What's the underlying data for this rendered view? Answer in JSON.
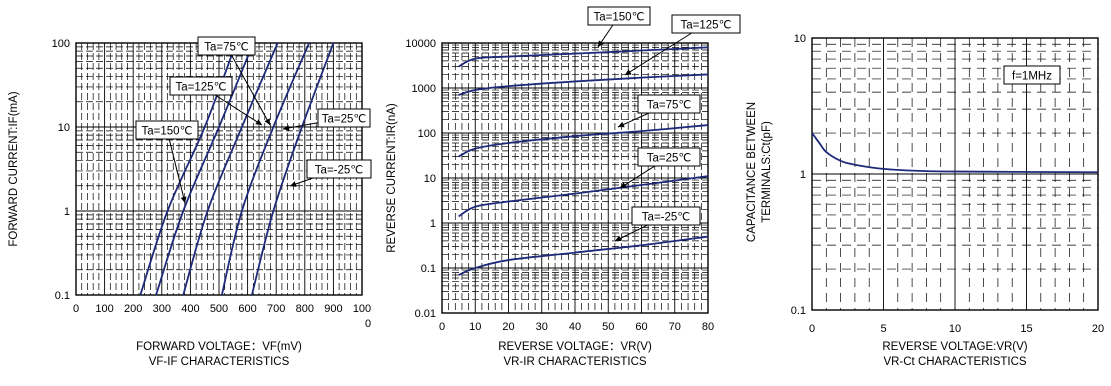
{
  "colors": {
    "curve": "#1f2a7a",
    "grid": "#000000",
    "background": "#ffffff"
  },
  "chart_data": [
    {
      "type": "line",
      "caption": "VF-IF CHARACTERISTICS",
      "xlabel": "FORWARD VOLTAGE：VF(mV)",
      "ylabel": "FORWARD CURRENT:IF(mA)",
      "xlim": [
        0,
        1000
      ],
      "ylim": [
        0.1,
        100
      ],
      "yscale": "log",
      "xticks": [
        "0",
        "100",
        "200",
        "300",
        "400",
        "500",
        "600",
        "700",
        "800",
        "900",
        "1000"
      ],
      "xtick_last_label": [
        "100",
        "0"
      ],
      "yticks": [
        "0.1",
        "1",
        "10",
        "100"
      ],
      "series": [
        {
          "name": "Ta=150℃",
          "x": [
            225,
            320,
            450,
            560
          ],
          "y": [
            0.1,
            1,
            10,
            100
          ]
        },
        {
          "name": "Ta=125℃",
          "x": [
            280,
            375,
            500,
            620
          ],
          "y": [
            0.1,
            1,
            10,
            100
          ]
        },
        {
          "name": "Ta=75℃",
          "x": [
            375,
            460,
            580,
            705
          ],
          "y": [
            0.1,
            1,
            10,
            100
          ]
        },
        {
          "name": "Ta=25℃",
          "x": [
            510,
            580,
            690,
            815
          ],
          "y": [
            0.1,
            1,
            10,
            100
          ]
        },
        {
          "name": "Ta=-25℃",
          "x": [
            615,
            690,
            790,
            900
          ],
          "y": [
            0.1,
            1,
            10,
            100
          ]
        }
      ],
      "annotations": [
        {
          "text": "Ta=75℃"
        },
        {
          "text": "Ta=125℃"
        },
        {
          "text": "Ta=150℃"
        },
        {
          "text": "Ta=25℃"
        },
        {
          "text": "Ta=-25℃"
        }
      ]
    },
    {
      "type": "line",
      "caption": "VR-IR CHARACTERISTICS",
      "xlabel": "REVERSE VOLTAGE：VR(V)",
      "ylabel": "REVERSE CURRENT:IR(nA)",
      "xlim": [
        0,
        80
      ],
      "ylim": [
        0.01,
        10000
      ],
      "yscale": "log",
      "xticks": [
        "0",
        "10",
        "20",
        "30",
        "40",
        "50",
        "60",
        "70",
        "80"
      ],
      "yticks": [
        "0.01",
        "0.1",
        "1",
        "10",
        "100",
        "1000",
        "10000"
      ],
      "series": [
        {
          "name": "Ta=150℃",
          "x": [
            5,
            10,
            20,
            40,
            60,
            80
          ],
          "y": [
            3000,
            4500,
            5000,
            5800,
            6800,
            8000
          ]
        },
        {
          "name": "Ta=125℃",
          "x": [
            5,
            10,
            20,
            40,
            60,
            80
          ],
          "y": [
            700,
            900,
            1100,
            1400,
            1700,
            2000
          ]
        },
        {
          "name": "Ta=75℃",
          "x": [
            5,
            10,
            20,
            40,
            60,
            80
          ],
          "y": [
            30,
            45,
            60,
            85,
            110,
            150
          ]
        },
        {
          "name": "Ta=25℃",
          "x": [
            5,
            10,
            20,
            40,
            60,
            80
          ],
          "y": [
            1.4,
            2.3,
            3,
            4.5,
            7,
            11
          ]
        },
        {
          "name": "Ta=-25℃",
          "x": [
            5,
            10,
            20,
            40,
            60,
            80
          ],
          "y": [
            0.07,
            0.1,
            0.15,
            0.22,
            0.32,
            0.5
          ]
        }
      ],
      "annotations": [
        {
          "text": "Ta=150℃"
        },
        {
          "text": "Ta=125℃"
        },
        {
          "text": "Ta=75℃"
        },
        {
          "text": "Ta=25℃"
        },
        {
          "text": "Ta=-25℃"
        }
      ]
    },
    {
      "type": "line",
      "caption": "VR-Ct CHARACTERISTICS",
      "xlabel": "REVERSE VOLTAGE:VR(V)",
      "ylabel": [
        "CAPACITANCE BETWEEN",
        "TERMINALS:Ct(pF)"
      ],
      "xlim": [
        0,
        20
      ],
      "ylim": [
        0.1,
        10
      ],
      "yscale": "log",
      "xticks": [
        "0",
        "5",
        "10",
        "15",
        "20"
      ],
      "yticks": [
        "0.1",
        "1",
        "10"
      ],
      "series": [
        {
          "name": "",
          "x": [
            0,
            0.5,
            1,
            2,
            3,
            5,
            8,
            12,
            20
          ],
          "y": [
            2.0,
            1.7,
            1.45,
            1.25,
            1.17,
            1.09,
            1.05,
            1.04,
            1.03
          ]
        }
      ],
      "annotations": [
        {
          "text": "f=1MHz"
        }
      ]
    }
  ]
}
